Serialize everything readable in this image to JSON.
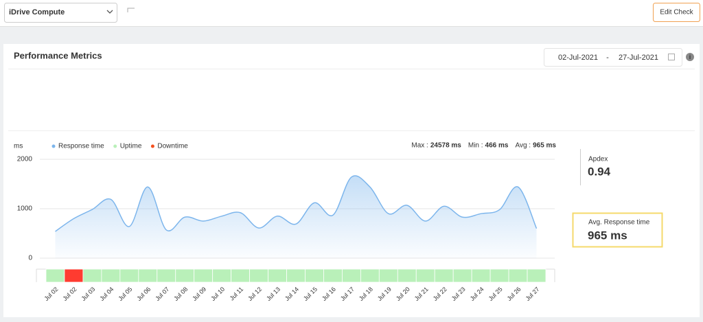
{
  "header": {
    "select": "iDrive Compute",
    "button": "Edit Check"
  },
  "card": {
    "title": "Performance Metrics",
    "date_from": "02-Jul-2021",
    "date_to": "27-Jul-2021"
  },
  "chart_data": {
    "type": "line",
    "ylabel": "ms",
    "categories": [
      "Jul 02",
      "Jul 02",
      "Jul 03",
      "Jul 04",
      "Jul 05",
      "Jul 06",
      "Jul 07",
      "Jul 08",
      "Jul 09",
      "Jul 10",
      "Jul 11",
      "Jul 12",
      "Jul 13",
      "Jul 14",
      "Jul 15",
      "Jul 16",
      "Jul 17",
      "Jul 18",
      "Jul 19",
      "Jul 20",
      "Jul 21",
      "Jul 22",
      "Jul 23",
      "Jul 24",
      "Jul 25",
      "Jul 26",
      "Jul 27"
    ],
    "series": [
      {
        "name": "Response time",
        "color": "#7cb5ec",
        "values": [
          540,
          800,
          985,
          1190,
          640,
          1440,
          570,
          830,
          750,
          850,
          920,
          610,
          850,
          690,
          1120,
          870,
          1640,
          1440,
          900,
          1070,
          750,
          1050,
          830,
          900,
          980,
          1440,
          600
        ]
      },
      {
        "name": "Uptime",
        "color": "#b9f0b9"
      },
      {
        "name": "Downtime",
        "color": "#f4511e"
      }
    ],
    "status_colors": [
      "#b9f0b9",
      "#ff3b30",
      "#b9f0b9",
      "#b9f0b9",
      "#b9f0b9",
      "#b9f0b9",
      "#b9f0b9",
      "#b9f0b9",
      "#b9f0b9",
      "#b9f0b9",
      "#b9f0b9",
      "#b9f0b9",
      "#b9f0b9",
      "#b9f0b9",
      "#b9f0b9",
      "#b9f0b9",
      "#b9f0b9",
      "#b9f0b9",
      "#b9f0b9",
      "#b9f0b9",
      "#b9f0b9",
      "#b9f0b9",
      "#b9f0b9",
      "#b9f0b9",
      "#b9f0b9",
      "#b9f0b9",
      "#b9f0b9"
    ],
    "ylim": [
      0,
      2000
    ],
    "yticks": [
      0,
      1000,
      2000
    ],
    "grid": true,
    "stats": [
      {
        "label": "Max :",
        "value": "24578 ms"
      },
      {
        "label": "Min :",
        "value": "466 ms"
      },
      {
        "label": "Avg :",
        "value": "965 ms"
      }
    ]
  },
  "side": {
    "apdex": {
      "label": "Apdex",
      "value": "0.94"
    },
    "avg": {
      "label": "Avg. Response time",
      "value": "965 ms"
    }
  }
}
